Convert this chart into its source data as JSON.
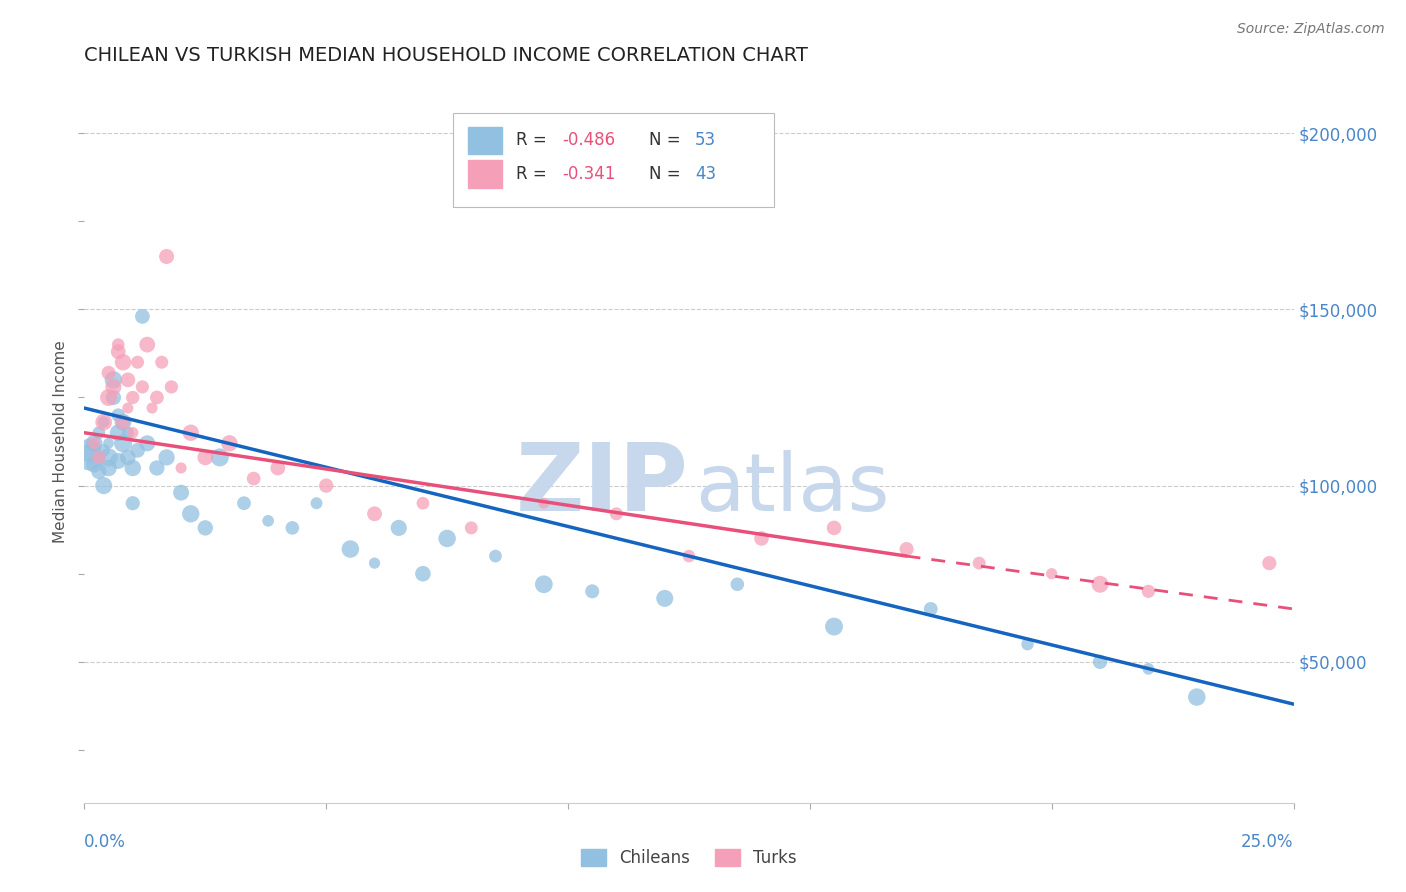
{
  "title": "CHILEAN VS TURKISH MEDIAN HOUSEHOLD INCOME CORRELATION CHART",
  "source": "Source: ZipAtlas.com",
  "ylabel": "Median Household Income",
  "yticks": [
    0,
    50000,
    100000,
    150000,
    200000
  ],
  "ytick_labels": [
    "",
    "$50,000",
    "$100,000",
    "$150,000",
    "$200,000"
  ],
  "xmin": 0.0,
  "xmax": 0.25,
  "ymin": 10000,
  "ymax": 215000,
  "chilean_R": -0.486,
  "chilean_N": 53,
  "turkish_R": -0.341,
  "turkish_N": 43,
  "chilean_color": "#92c0e0",
  "turkish_color": "#f5a0b8",
  "chilean_line_color": "#1565c0",
  "turkish_line_color": "#e8507a",
  "watermark_zip_color": "#c8d8ec",
  "watermark_atlas_color": "#c8d8ec",
  "background_color": "#ffffff",
  "grid_color": "#cccccc",
  "title_color": "#222222",
  "axis_label_color": "#4a86c8",
  "legend_R_color": "#e8507a",
  "legend_N_color": "#4a86c8",
  "chilean_line_x0": 0.0,
  "chilean_line_x1": 0.25,
  "chilean_line_y0": 122000,
  "chilean_line_y1": 38000,
  "turkish_line_x0": 0.0,
  "turkish_line_x1": 0.17,
  "turkish_line_y0": 115000,
  "turkish_line_y1": 80000,
  "turkish_line_dash_x0": 0.17,
  "turkish_line_dash_x1": 0.25,
  "turkish_line_dash_y0": 80000,
  "turkish_line_dash_y1": 65000,
  "chilean_x": [
    0.001,
    0.001,
    0.002,
    0.002,
    0.003,
    0.003,
    0.003,
    0.004,
    0.004,
    0.004,
    0.005,
    0.005,
    0.005,
    0.006,
    0.006,
    0.007,
    0.007,
    0.007,
    0.008,
    0.008,
    0.009,
    0.009,
    0.01,
    0.01,
    0.011,
    0.012,
    0.013,
    0.015,
    0.017,
    0.02,
    0.022,
    0.025,
    0.028,
    0.033,
    0.038,
    0.043,
    0.048,
    0.055,
    0.06,
    0.065,
    0.07,
    0.075,
    0.085,
    0.095,
    0.105,
    0.12,
    0.135,
    0.155,
    0.175,
    0.195,
    0.21,
    0.22,
    0.23
  ],
  "chilean_y": [
    108000,
    110000,
    106000,
    112000,
    104000,
    108000,
    115000,
    100000,
    110000,
    118000,
    105000,
    108000,
    112000,
    125000,
    130000,
    107000,
    115000,
    120000,
    112000,
    118000,
    108000,
    115000,
    95000,
    105000,
    110000,
    148000,
    112000,
    105000,
    108000,
    98000,
    92000,
    88000,
    108000,
    95000,
    90000,
    88000,
    95000,
    82000,
    78000,
    88000,
    75000,
    85000,
    80000,
    72000,
    70000,
    68000,
    72000,
    60000,
    65000,
    55000,
    50000,
    48000,
    40000
  ],
  "turkish_x": [
    0.002,
    0.003,
    0.004,
    0.005,
    0.005,
    0.006,
    0.007,
    0.007,
    0.008,
    0.008,
    0.009,
    0.009,
    0.01,
    0.01,
    0.011,
    0.012,
    0.013,
    0.014,
    0.015,
    0.016,
    0.017,
    0.018,
    0.02,
    0.022,
    0.025,
    0.03,
    0.035,
    0.04,
    0.05,
    0.06,
    0.07,
    0.08,
    0.095,
    0.11,
    0.125,
    0.14,
    0.155,
    0.17,
    0.185,
    0.2,
    0.21,
    0.22,
    0.245
  ],
  "turkish_y": [
    112000,
    108000,
    118000,
    125000,
    132000,
    128000,
    140000,
    138000,
    135000,
    118000,
    130000,
    122000,
    125000,
    115000,
    135000,
    128000,
    140000,
    122000,
    125000,
    135000,
    165000,
    128000,
    105000,
    115000,
    108000,
    112000,
    102000,
    105000,
    100000,
    92000,
    95000,
    88000,
    95000,
    92000,
    80000,
    85000,
    88000,
    82000,
    78000,
    75000,
    72000,
    70000,
    78000
  ]
}
